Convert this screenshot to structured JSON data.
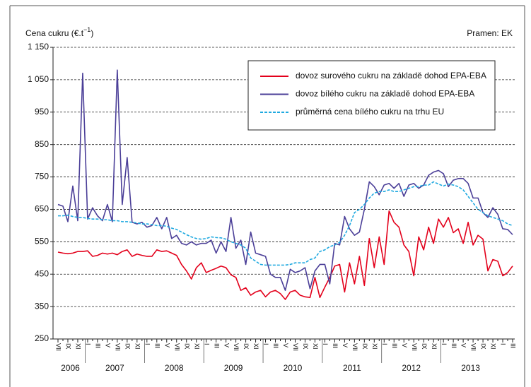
{
  "chart_data": {
    "type": "line",
    "y_label": {
      "text": "Cena cukru (€.t",
      "superscript": "−1",
      "suffix": ")"
    },
    "source": "Pramen: EK",
    "ylim": [
      250,
      1150
    ],
    "yticks": [
      250,
      350,
      450,
      550,
      650,
      750,
      850,
      950,
      {
        "value": 1050,
        "label": "1 050"
      },
      {
        "value": 1150,
        "label": "1 150"
      }
    ],
    "grid": true,
    "legend": "top-right",
    "years": [
      "2006",
      "2007",
      "2008",
      "2009",
      "2010",
      "2011",
      "2012",
      "2013"
    ],
    "categories": [
      "VII",
      null,
      "IX",
      null,
      "XI",
      null,
      "I",
      null,
      "III",
      null,
      "V",
      null,
      "VII",
      null,
      "IX",
      null,
      "XI",
      null,
      "I",
      null,
      "III",
      null,
      "V",
      null,
      "VII",
      null,
      "IX",
      null,
      "XI",
      null,
      "I",
      null,
      "III",
      null,
      "V",
      null,
      "VII",
      null,
      "IX",
      null,
      "XI",
      null,
      "I",
      null,
      "III",
      null,
      "V",
      null,
      "VII",
      null,
      "IX",
      null,
      "XI",
      null,
      "I",
      null,
      "III",
      null,
      "V",
      null,
      "VII",
      null,
      "IX",
      null,
      "XI",
      null,
      "I",
      null,
      "III",
      null,
      "V",
      null,
      "VII",
      null,
      "IX",
      null,
      "XI",
      null,
      "I",
      null,
      "III",
      null,
      "V",
      null,
      "VII",
      null,
      "IX",
      null,
      "XI",
      null,
      "I",
      null,
      "III"
    ],
    "series": [
      {
        "name": "dovoz surového cukru na základě dohod EPA-EBA",
        "color": "#e3001b",
        "style": "solid",
        "values": [
          518,
          515,
          513,
          515,
          520,
          520,
          522,
          505,
          508,
          515,
          512,
          515,
          510,
          520,
          525,
          505,
          512,
          508,
          505,
          505,
          525,
          520,
          522,
          515,
          508,
          480,
          460,
          435,
          470,
          485,
          455,
          462,
          468,
          475,
          470,
          448,
          440,
          400,
          408,
          385,
          395,
          400,
          380,
          395,
          400,
          390,
          372,
          395,
          400,
          385,
          380,
          378,
          440,
          378,
          410,
          440,
          475,
          480,
          395,
          485,
          420,
          505,
          415,
          560,
          470,
          565,
          480,
          645,
          610,
          595,
          540,
          520,
          445,
          565,
          525,
          595,
          545,
          620,
          595,
          625,
          578,
          590,
          545,
          610,
          540,
          570,
          558,
          460,
          495,
          490,
          445,
          455,
          475
        ]
      },
      {
        "name": "dovoz bílého cukru na základě dohod EPA-EBA",
        "color": "#4b3f98",
        "style": "solid",
        "values": [
          665,
          660,
          612,
          722,
          615,
          1070,
          620,
          655,
          630,
          615,
          665,
          612,
          1080,
          665,
          810,
          610,
          605,
          610,
          595,
          600,
          625,
          590,
          625,
          560,
          570,
          545,
          540,
          550,
          540,
          545,
          545,
          555,
          515,
          550,
          520,
          625,
          530,
          555,
          480,
          580,
          515,
          510,
          505,
          450,
          440,
          440,
          400,
          465,
          455,
          460,
          470,
          405,
          460,
          480,
          480,
          420,
          545,
          540,
          628,
          590,
          570,
          580,
          650,
          735,
          720,
          695,
          725,
          730,
          715,
          730,
          690,
          725,
          730,
          715,
          725,
          755,
          765,
          770,
          760,
          720,
          740,
          745,
          745,
          730,
          685,
          685,
          640,
          625,
          655,
          635,
          590,
          588,
          572
        ]
      },
      {
        "name": "průměrná cena bílého cukru na trhu EU",
        "color": "#1fa9e0",
        "style": "dashed",
        "values": [
          630,
          630,
          632,
          628,
          625,
          625,
          622,
          620,
          620,
          618,
          618,
          615,
          615,
          612,
          612,
          610,
          608,
          605,
          605,
          603,
          600,
          600,
          598,
          592,
          588,
          580,
          572,
          565,
          560,
          558,
          560,
          565,
          563,
          562,
          558,
          550,
          545,
          540,
          530,
          500,
          490,
          480,
          478,
          478,
          478,
          478,
          478,
          480,
          485,
          485,
          485,
          495,
          500,
          520,
          525,
          535,
          540,
          548,
          570,
          600,
          640,
          650,
          665,
          685,
          700,
          705,
          705,
          710,
          705,
          705,
          710,
          715,
          720,
          720,
          725,
          725,
          735,
          728,
          722,
          728,
          725,
          720,
          710,
          690,
          670,
          650,
          640,
          630,
          625,
          620,
          615,
          605,
          600
        ]
      }
    ]
  }
}
